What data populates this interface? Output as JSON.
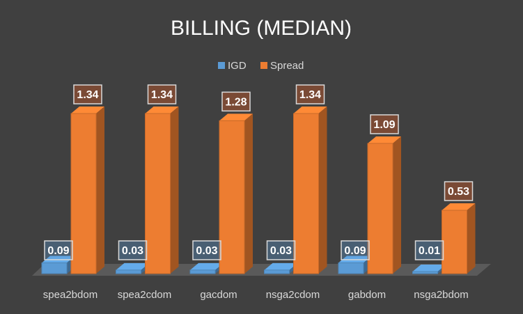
{
  "chart_data": {
    "type": "bar",
    "title": "BILLING (MEDIAN)",
    "xlabel": "",
    "ylabel": "",
    "ylim": [
      0,
      1.5
    ],
    "grid": false,
    "legend_position": "top",
    "categories": [
      "spea2bdom",
      "spea2cdom",
      "gacdom",
      "nsga2cdom",
      "gabdom",
      "nsga2bdom"
    ],
    "series": [
      {
        "name": "IGD",
        "values": [
          0.09,
          0.03,
          0.03,
          0.03,
          0.09,
          0.01
        ],
        "labels": [
          "0.09",
          "0.03",
          "0.03",
          "0.03",
          "0.09",
          "0.01"
        ],
        "color": "#5b9bd5"
      },
      {
        "name": "Spread",
        "values": [
          1.34,
          1.34,
          1.28,
          1.34,
          1.09,
          0.53
        ],
        "labels": [
          "1.34",
          "1.34",
          "1.28",
          "1.34",
          "1.09",
          "0.53"
        ],
        "color": "#ed7d31"
      }
    ],
    "colors": {
      "background": "#404040",
      "text": "#d9d9d9",
      "title": "#ffffff",
      "floor": "#5a5a5a"
    }
  }
}
